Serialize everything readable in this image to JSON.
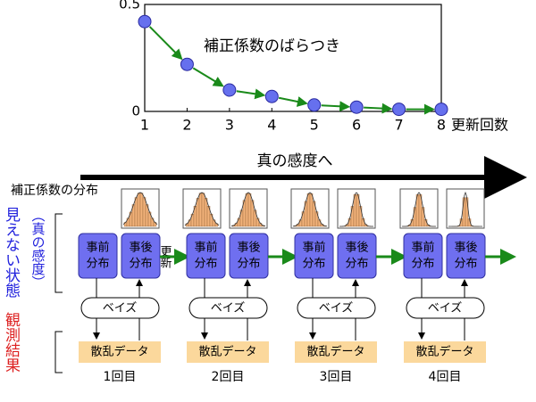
{
  "chart_data": {
    "type": "line",
    "annotation": "補正係数のばらつき",
    "xlabel": "更新回数",
    "x": [
      1,
      2,
      3,
      4,
      5,
      6,
      7,
      8
    ],
    "values": [
      0.42,
      0.22,
      0.1,
      0.07,
      0.03,
      0.02,
      0.01,
      0.01
    ],
    "color": "#1a8a1a",
    "marker_color": "#6670ee",
    "xlim": [
      1,
      8
    ],
    "ylim": [
      0,
      0.5
    ],
    "xticks": [
      1,
      2,
      3,
      4,
      5,
      6,
      7,
      8
    ],
    "yticks": [
      0,
      0.5
    ]
  },
  "diagram": {
    "arrow_label": "真の感度へ",
    "distribution_label": "補正係数の分布",
    "hidden_state_label": "見えない状態",
    "true_sensitivity_label": "（真の感度）",
    "observation_label": "観測結果",
    "update_label": "更新",
    "steps": [
      {
        "prior": [
          "事前",
          "分布"
        ],
        "posterior": [
          "事後",
          "分布"
        ],
        "bayes": "ベイズ",
        "data": "散乱データ",
        "label": "1回目"
      },
      {
        "prior": [
          "事前",
          "分布"
        ],
        "posterior": [
          "事後",
          "分布"
        ],
        "bayes": "ベイズ",
        "data": "散乱データ",
        "label": "2回目"
      },
      {
        "prior": [
          "事前",
          "分布"
        ],
        "posterior": [
          "事後",
          "分布"
        ],
        "bayes": "ベイズ",
        "data": "散乱データ",
        "label": "3回目"
      },
      {
        "prior": [
          "事前",
          "分布"
        ],
        "posterior": [
          "事後",
          "分布"
        ],
        "bayes": "ベイズ",
        "data": "散乱データ",
        "label": "4回目"
      }
    ]
  }
}
